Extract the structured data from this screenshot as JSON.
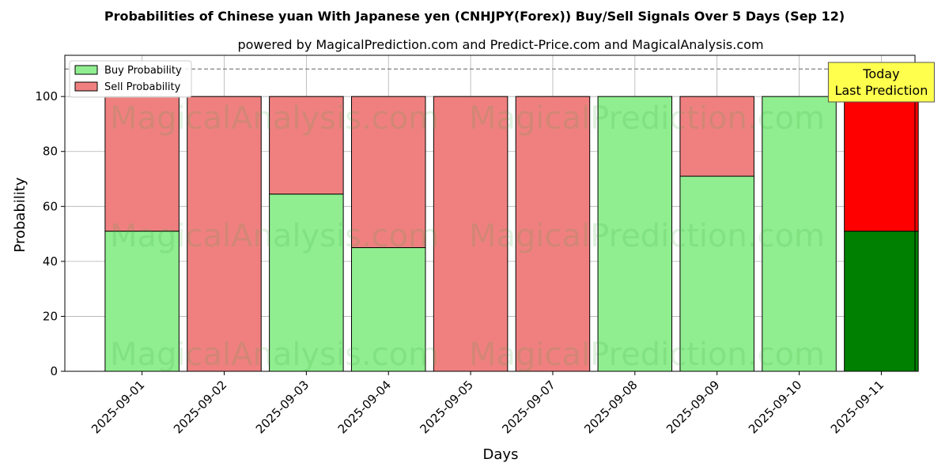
{
  "chart_data": {
    "type": "bar",
    "title": "Probabilities of Chinese yuan With Japanese yen (CNHJPY(Forex)) Buy/Sell Signals Over 5 Days (Sep 12)",
    "subtitle": "powered by MagicalPrediction.com and Predict-Price.com and MagicalAnalysis.com",
    "xlabel": "Days",
    "ylabel": "Probability",
    "ylim": [
      0,
      115
    ],
    "yticks": [
      0,
      20,
      40,
      60,
      80,
      100
    ],
    "grid": true,
    "stacked": true,
    "legend_position": "top-left",
    "threshold_line": 110,
    "categories": [
      "2025-09-01",
      "2025-09-02",
      "2025-09-03",
      "2025-09-04",
      "2025-09-05",
      "2025-09-07",
      "2025-09-08",
      "2025-09-09",
      "2025-09-10",
      "2025-09-11"
    ],
    "series": [
      {
        "name": "Buy Probability",
        "color": "#90ee90",
        "values": [
          51,
          0,
          64.5,
          45,
          0,
          0,
          100,
          71,
          100,
          51
        ]
      },
      {
        "name": "Sell Probability",
        "color": "#f08080",
        "values": [
          49,
          100,
          35.5,
          55,
          100,
          100,
          0,
          29,
          0,
          49
        ]
      }
    ],
    "highlight": {
      "index": 9,
      "buy_color": "#008000",
      "sell_color": "#ff0000",
      "annotation": [
        "Today",
        "Last Prediction"
      ],
      "annotation_color": "#ffff4d"
    },
    "watermarks": [
      "MagicalAnalysis.com",
      "MagicalPrediction.com"
    ]
  }
}
